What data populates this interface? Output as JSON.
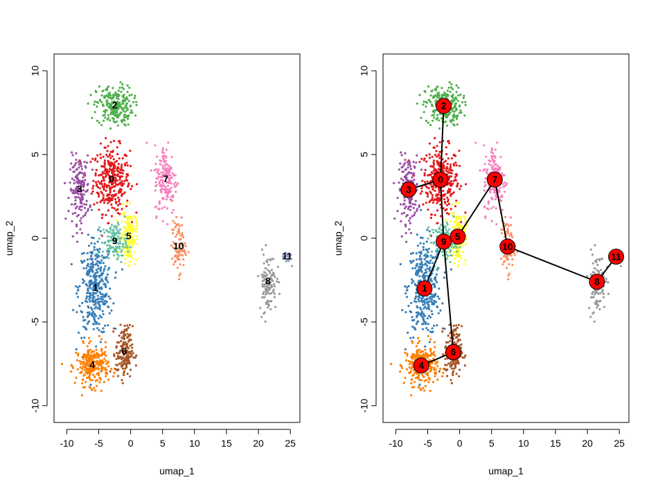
{
  "chart_data": [
    {
      "type": "scatter",
      "title": "",
      "xlabel": "umap_1",
      "ylabel": "umap_2",
      "xlim": [
        -12,
        26.5
      ],
      "ylim": [
        -11,
        11
      ],
      "xticks": [
        -10,
        -5,
        0,
        5,
        10,
        15,
        20,
        25
      ],
      "yticks": [
        -10,
        -5,
        0,
        5,
        10
      ],
      "xtick_labels": [
        "-10",
        "-5",
        "0",
        "5",
        "10",
        "15",
        "20",
        "25"
      ],
      "ytick_labels": [
        "-10",
        "-5",
        "0",
        "5",
        "10"
      ],
      "grid": false,
      "legend": "none",
      "point_style": "dense colored dots, one color per cluster",
      "clusters": [
        {
          "label": "0",
          "color": "#E41A1C",
          "center": [
            -3,
            3.5
          ]
        },
        {
          "label": "1",
          "color": "#377EB8",
          "center": [
            -5.5,
            -3
          ]
        },
        {
          "label": "2",
          "color": "#4DAF4A",
          "center": [
            -2.5,
            7.9
          ]
        },
        {
          "label": "3",
          "color": "#984EA3",
          "center": [
            -8,
            2.9
          ]
        },
        {
          "label": "4",
          "color": "#FF7F00",
          "center": [
            -6,
            -7.6
          ]
        },
        {
          "label": "5",
          "color": "#FFFF33",
          "center": [
            -0.3,
            0.1
          ]
        },
        {
          "label": "6",
          "color": "#A65628",
          "center": [
            -1,
            -6.8
          ]
        },
        {
          "label": "7",
          "color": "#F781BF",
          "center": [
            5.5,
            3.5
          ]
        },
        {
          "label": "8",
          "color": "#999999",
          "center": [
            21.5,
            -2.6
          ]
        },
        {
          "label": "9",
          "color": "#66C2A5",
          "center": [
            -2.5,
            -0.2
          ]
        },
        {
          "label": "10",
          "color": "#FC8D62",
          "center": [
            7.5,
            -0.5
          ]
        },
        {
          "label": "11",
          "color": "#8DA0CB",
          "center": [
            24.5,
            -1.1
          ]
        }
      ]
    },
    {
      "type": "scatter",
      "title": "",
      "xlabel": "umap_1",
      "ylabel": "umap_2",
      "xlim": [
        -12,
        26.5
      ],
      "ylim": [
        -11,
        11
      ],
      "xticks": [
        -10,
        -5,
        0,
        5,
        10,
        15,
        20,
        25
      ],
      "yticks": [
        -10,
        -5,
        0,
        5,
        10
      ],
      "xtick_labels": [
        "-10",
        "-5",
        "0",
        "5",
        "10",
        "15",
        "20",
        "25"
      ],
      "ytick_labels": [
        "-10",
        "-5",
        "0",
        "5",
        "10"
      ],
      "grid": false,
      "legend": "none",
      "overlay": "trajectory graph: red nodes at cluster centers joined by black edges",
      "node_color": "#FF0000",
      "edge_color": "#000000",
      "edges": [
        [
          "2",
          "0"
        ],
        [
          "3",
          "0"
        ],
        [
          "0",
          "9"
        ],
        [
          "9",
          "5"
        ],
        [
          "9",
          "1"
        ],
        [
          "9",
          "6"
        ],
        [
          "6",
          "4"
        ],
        [
          "5",
          "7"
        ],
        [
          "7",
          "10"
        ],
        [
          "10",
          "8"
        ],
        [
          "8",
          "11"
        ]
      ]
    }
  ]
}
